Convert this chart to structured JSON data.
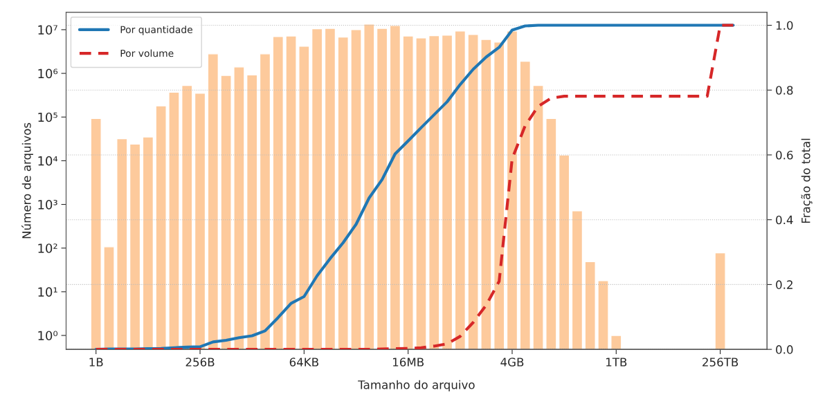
{
  "chart_data": {
    "type": "bar",
    "xlabel": "Tamanho do arquivo",
    "ylabel": "Número de arquivos",
    "y2label": "Fração do total",
    "log": "y",
    "grid": "y",
    "legend": "top left",
    "marker": "none",
    "categories": [
      "1B",
      null,
      null,
      null,
      null,
      null,
      null,
      null,
      "256B",
      null,
      null,
      null,
      null,
      null,
      null,
      null,
      "64KB",
      null,
      null,
      null,
      null,
      null,
      null,
      null,
      "16MB",
      null,
      null,
      null,
      null,
      null,
      null,
      null,
      "4GB",
      null,
      null,
      null,
      null,
      null,
      null,
      null,
      "1TB",
      null,
      null,
      null,
      null,
      null,
      null,
      null,
      "256TB",
      null
    ],
    "ylim": [
      0.48,
      25000000
    ],
    "yticks": [
      {
        "value": 1,
        "label": "10⁰"
      },
      {
        "value": 10,
        "label": "10¹"
      },
      {
        "value": 100,
        "label": "10²"
      },
      {
        "value": 1000,
        "label": "10³"
      },
      {
        "value": 10000,
        "label": "10⁴"
      },
      {
        "value": 100000,
        "label": "10⁵"
      },
      {
        "value": 1000000,
        "label": "10⁶"
      },
      {
        "value": 10000000,
        "label": "10⁷"
      }
    ],
    "y2lim": [
      0,
      1.04
    ],
    "y2ticks": [
      {
        "value": 0,
        "label": "0.0"
      },
      {
        "value": 0.2,
        "label": "0.2"
      },
      {
        "value": 0.4,
        "label": "0.4"
      },
      {
        "value": 0.6,
        "label": "0.6"
      },
      {
        "value": 0.8,
        "label": "0.8"
      },
      {
        "value": 1,
        "label": "1.0"
      }
    ],
    "series": [
      {
        "color": "#fdca9c",
        "values": [
          93000,
          107,
          32000,
          24000,
          35000,
          180000,
          370000,
          530000,
          350000,
          2800000,
          900000,
          1400000,
          920000,
          2800000,
          7000000,
          7200000,
          4200000,
          10500000,
          10700000,
          6800000,
          10000000,
          13500000,
          10700000,
          12500000,
          7200000,
          6500000,
          7300000,
          7500000,
          9300000,
          7800000,
          6000000,
          5200000,
          9300000,
          1900000,
          530000,
          93000,
          13500,
          710,
          49,
          18,
          1,
          null,
          null,
          null,
          null,
          null,
          null,
          null,
          78,
          null
        ]
      },
      {
        "type": "line",
        "axis": "y2",
        "name": "Por quantidade",
        "color": "#1f77b4",
        "line_style": "solid",
        "values": [
          0,
          0.001,
          0.001,
          0.001,
          0.002,
          0.003,
          0.005,
          0.007,
          0.008,
          0.023,
          0.028,
          0.036,
          0.042,
          0.057,
          0.098,
          0.142,
          0.163,
          0.227,
          0.28,
          0.329,
          0.386,
          0.467,
          0.524,
          0.603,
          0.643,
          0.684,
          0.724,
          0.764,
          0.817,
          0.864,
          0.902,
          0.932,
          0.985,
          0.998,
          1.0,
          1.0,
          1.0,
          1.0,
          1.0,
          1.0,
          1.0,
          1.0,
          1.0,
          1.0,
          1.0,
          1.0,
          1.0,
          1.0,
          1.0,
          1.0
        ]
      },
      {
        "type": "line",
        "axis": "y2",
        "name": "Por volume",
        "color": "#d62728",
        "line_style": "dashed",
        "values": [
          0,
          0,
          0,
          0,
          0,
          0,
          0,
          0,
          0,
          0,
          0,
          0,
          0,
          0,
          0,
          0,
          0,
          0,
          0,
          0,
          0,
          0,
          0.001,
          0.002,
          0.003,
          0.005,
          0.01,
          0.017,
          0.04,
          0.083,
          0.136,
          0.21,
          0.588,
          0.69,
          0.75,
          0.775,
          0.781,
          0.781,
          0.781,
          0.781,
          0.781,
          0.781,
          0.781,
          0.781,
          0.781,
          0.781,
          0.781,
          0.781,
          1.0,
          1.0
        ]
      }
    ]
  }
}
